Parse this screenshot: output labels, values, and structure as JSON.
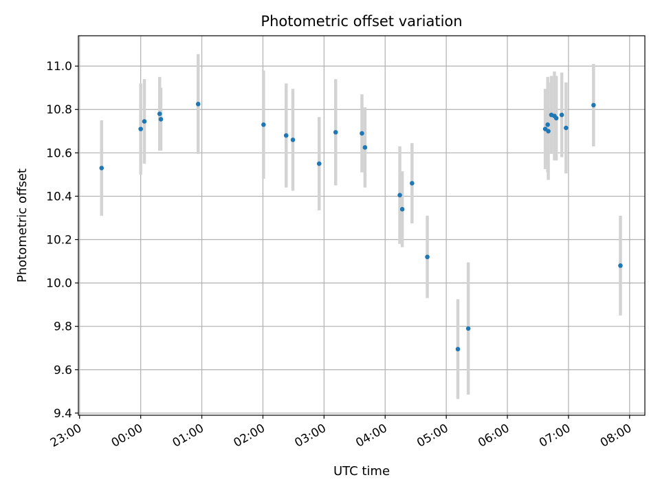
{
  "chart_data": {
    "type": "scatter",
    "title": "Photometric offset variation",
    "xlabel": "UTC time",
    "ylabel": "Photometric offset",
    "x_unit": "hours since 23:00 UTC",
    "xlim": [
      -0.02,
      9.25
    ],
    "ylim": [
      9.39,
      11.14
    ],
    "x_ticks": [
      0,
      1,
      2,
      3,
      4,
      5,
      6,
      7,
      8,
      9
    ],
    "x_tick_labels": [
      "23:00",
      "00:00",
      "01:00",
      "02:00",
      "03:00",
      "04:00",
      "05:00",
      "06:00",
      "07:00",
      "08:00"
    ],
    "y_ticks": [
      9.4,
      9.6,
      9.8,
      10.0,
      10.2,
      10.4,
      10.6,
      10.8,
      11.0
    ],
    "y_tick_labels": [
      "9.4",
      "9.6",
      "9.8",
      "10.0",
      "10.2",
      "10.4",
      "10.6",
      "10.8",
      "11.0"
    ],
    "grid": true,
    "error_bars": true,
    "colors": {
      "point": "#1f77b4",
      "error_bar": "#d3d3d3",
      "grid": "#b0b0b0",
      "axes": "#000000"
    },
    "points": [
      {
        "time": "23:21",
        "x": 0.36,
        "y": 10.53,
        "err": 0.22
      },
      {
        "time": "00:00",
        "x": 1.0,
        "y": 10.71,
        "err": 0.21
      },
      {
        "time": "00:04",
        "x": 1.06,
        "y": 10.745,
        "err": 0.195
      },
      {
        "time": "00:18",
        "x": 1.31,
        "y": 10.78,
        "err": 0.17
      },
      {
        "time": "00:19",
        "x": 1.33,
        "y": 10.755,
        "err": 0.145
      },
      {
        "time": "00:56",
        "x": 1.94,
        "y": 10.825,
        "err": 0.23
      },
      {
        "time": "02:01",
        "x": 3.01,
        "y": 10.73,
        "err": 0.25
      },
      {
        "time": "02:22",
        "x": 3.38,
        "y": 10.68,
        "err": 0.24
      },
      {
        "time": "02:29",
        "x": 3.49,
        "y": 10.66,
        "err": 0.235
      },
      {
        "time": "02:55",
        "x": 3.92,
        "y": 10.55,
        "err": 0.215
      },
      {
        "time": "03:11",
        "x": 4.19,
        "y": 10.695,
        "err": 0.245
      },
      {
        "time": "03:37",
        "x": 4.62,
        "y": 10.69,
        "err": 0.18
      },
      {
        "time": "03:40",
        "x": 4.67,
        "y": 10.625,
        "err": 0.185
      },
      {
        "time": "04:14",
        "x": 5.24,
        "y": 10.405,
        "err": 0.225
      },
      {
        "time": "04:17",
        "x": 5.28,
        "y": 10.34,
        "err": 0.175
      },
      {
        "time": "04:27",
        "x": 5.44,
        "y": 10.46,
        "err": 0.185
      },
      {
        "time": "04:41",
        "x": 5.69,
        "y": 10.12,
        "err": 0.19
      },
      {
        "time": "05:11",
        "x": 6.19,
        "y": 9.695,
        "err": 0.23
      },
      {
        "time": "05:21",
        "x": 6.36,
        "y": 9.79,
        "err": 0.305
      },
      {
        "time": "06:37",
        "x": 7.62,
        "y": 10.71,
        "err": 0.185
      },
      {
        "time": "06:39",
        "x": 7.66,
        "y": 10.73,
        "err": 0.22
      },
      {
        "time": "06:40",
        "x": 7.67,
        "y": 10.7,
        "err": 0.225
      },
      {
        "time": "06:43",
        "x": 7.72,
        "y": 10.775,
        "err": 0.18
      },
      {
        "time": "06:46",
        "x": 7.77,
        "y": 10.77,
        "err": 0.205
      },
      {
        "time": "06:48",
        "x": 7.8,
        "y": 10.76,
        "err": 0.195
      },
      {
        "time": "06:53",
        "x": 7.89,
        "y": 10.775,
        "err": 0.195
      },
      {
        "time": "06:57",
        "x": 7.96,
        "y": 10.715,
        "err": 0.21
      },
      {
        "time": "07:24",
        "x": 8.41,
        "y": 10.82,
        "err": 0.19
      },
      {
        "time": "07:51",
        "x": 8.85,
        "y": 10.08,
        "err": 0.23
      }
    ]
  }
}
